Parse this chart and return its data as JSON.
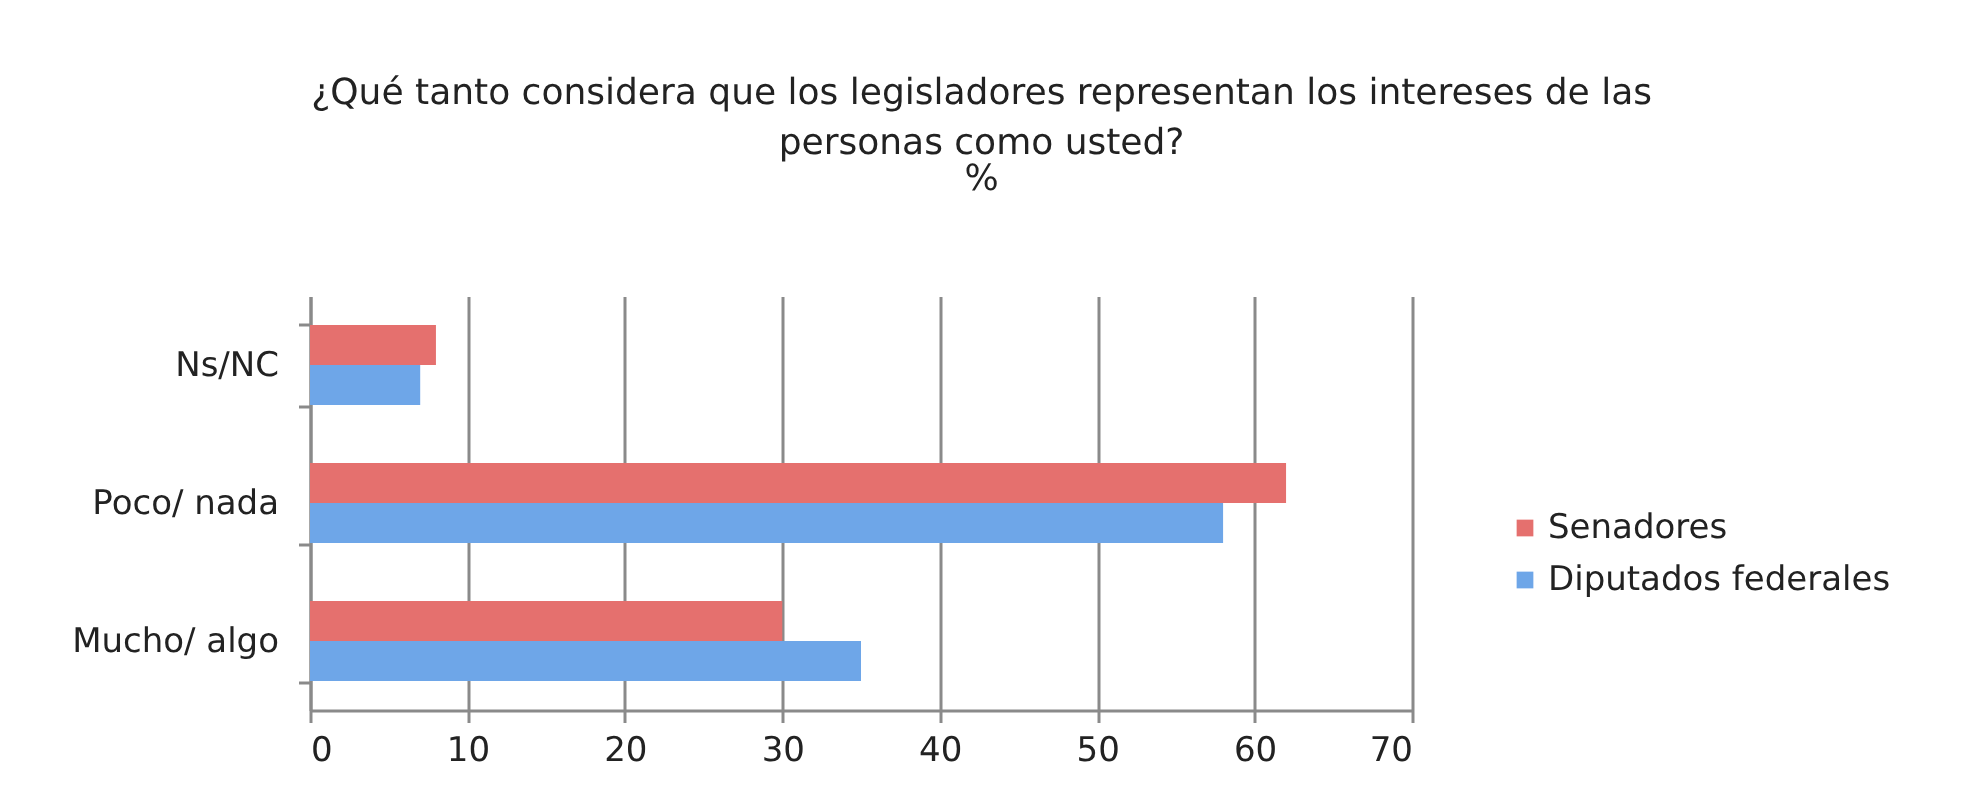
{
  "chart_data": {
    "type": "bar",
    "orientation": "horizontal",
    "title": "¿Qué tanto considera que los legisladores representan los intereses de las personas como usted?",
    "subtitle": "%",
    "categories": [
      "Ns/NC",
      "Poco/ nada",
      "Mucho/ algo"
    ],
    "series": [
      {
        "name": "Senadores",
        "color": "#e5706e",
        "values": [
          8,
          62,
          30
        ]
      },
      {
        "name": "Diputados federales",
        "color": "#6ea6e8",
        "values": [
          7,
          58,
          35
        ]
      }
    ],
    "xlim": [
      0,
      70
    ],
    "xticks": [
      0,
      10,
      20,
      30,
      40,
      50,
      60,
      70
    ],
    "grid": "x",
    "legend": "right"
  }
}
